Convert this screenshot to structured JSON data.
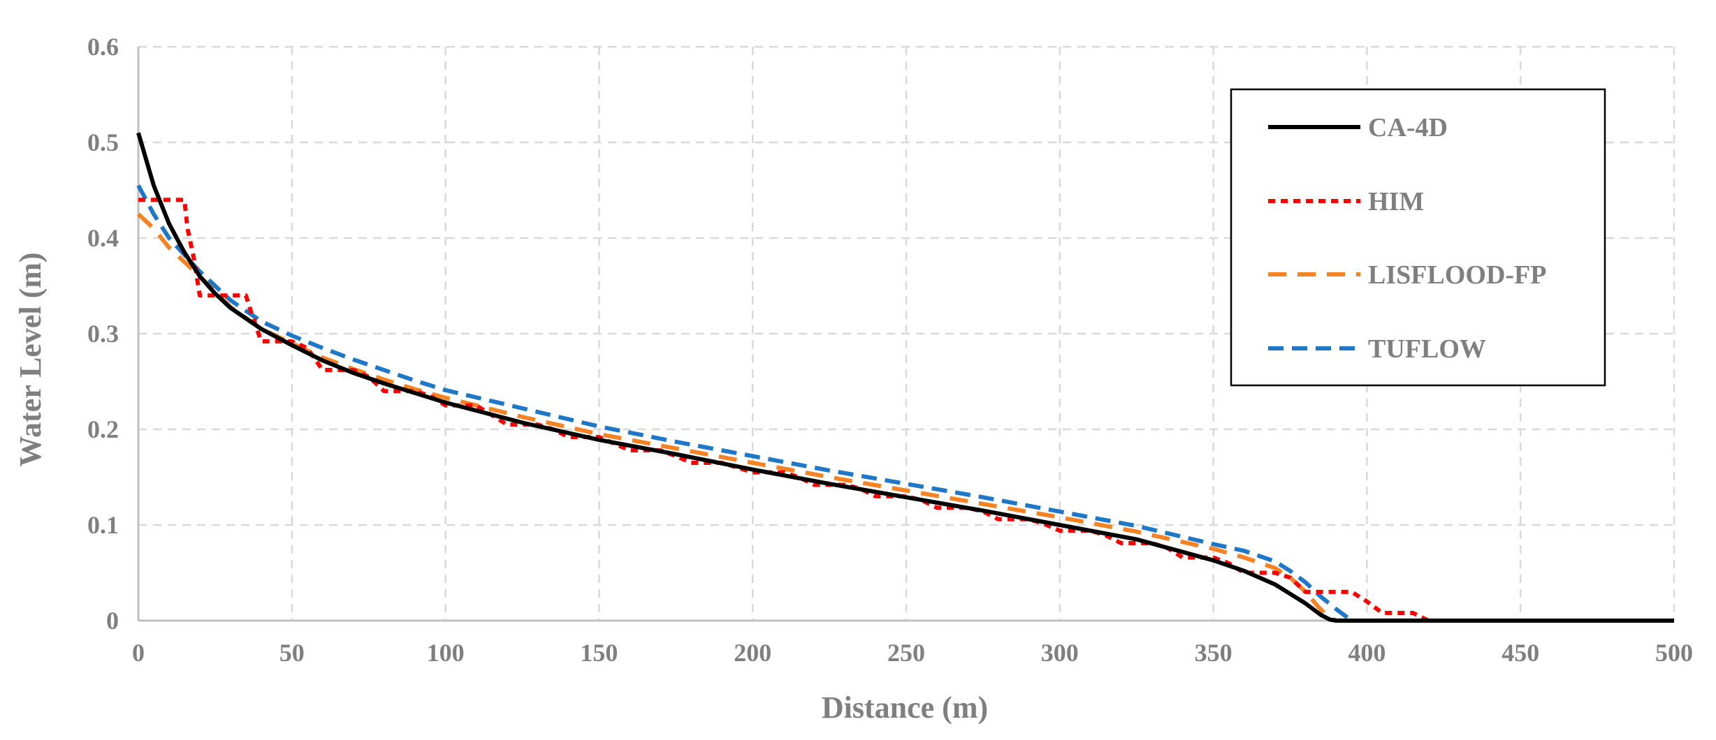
{
  "chart_data": {
    "type": "line",
    "title": "",
    "xlabel": "Distance (m)",
    "ylabel": "Water Level (m)",
    "xlim": [
      0,
      500
    ],
    "ylim": [
      0,
      0.6
    ],
    "x_ticks": [
      0,
      50,
      100,
      150,
      200,
      250,
      300,
      350,
      400,
      450,
      500
    ],
    "y_ticks": [
      0,
      0.1,
      0.2,
      0.3,
      0.4,
      0.5,
      0.6
    ],
    "x_tick_labels": [
      "0",
      "50",
      "100",
      "150",
      "200",
      "250",
      "300",
      "350",
      "400",
      "450",
      "500"
    ],
    "y_tick_labels": [
      "0",
      "0.1",
      "0.2",
      "0.3",
      "0.4",
      "0.5",
      "0.6"
    ],
    "grid": true,
    "legend_position": "top-right",
    "series": [
      {
        "name": "CA-4D",
        "color": "#000000",
        "dash": "solid",
        "x": [
          0,
          5,
          10,
          15,
          20,
          25,
          30,
          40,
          50,
          60,
          70,
          80,
          90,
          100,
          125,
          150,
          175,
          200,
          225,
          250,
          275,
          300,
          325,
          350,
          360,
          370,
          375,
          380,
          385,
          388,
          390,
          400,
          500
        ],
        "y": [
          0.51,
          0.455,
          0.415,
          0.385,
          0.36,
          0.342,
          0.327,
          0.305,
          0.288,
          0.272,
          0.259,
          0.248,
          0.238,
          0.228,
          0.207,
          0.189,
          0.174,
          0.158,
          0.143,
          0.129,
          0.115,
          0.1,
          0.085,
          0.063,
          0.052,
          0.038,
          0.028,
          0.018,
          0.006,
          0.001,
          0,
          0,
          0
        ]
      },
      {
        "name": "HIM",
        "color": "#ff0000",
        "dash": "dotted",
        "x": [
          0,
          15,
          16,
          18,
          20,
          35,
          37,
          40,
          50,
          55,
          60,
          70,
          75,
          80,
          90,
          95,
          100,
          110,
          115,
          120,
          130,
          135,
          140,
          150,
          155,
          160,
          170,
          175,
          180,
          190,
          195,
          200,
          210,
          215,
          220,
          230,
          235,
          240,
          250,
          255,
          260,
          270,
          275,
          280,
          290,
          295,
          300,
          310,
          315,
          320,
          330,
          335,
          340,
          350,
          355,
          360,
          370,
          375,
          380,
          385,
          390,
          395,
          400,
          405,
          415,
          420,
          500
        ],
        "y": [
          0.44,
          0.44,
          0.41,
          0.38,
          0.34,
          0.34,
          0.32,
          0.292,
          0.292,
          0.285,
          0.262,
          0.262,
          0.255,
          0.24,
          0.24,
          0.235,
          0.225,
          0.225,
          0.215,
          0.205,
          0.205,
          0.2,
          0.192,
          0.192,
          0.185,
          0.178,
          0.178,
          0.172,
          0.165,
          0.165,
          0.16,
          0.155,
          0.155,
          0.15,
          0.142,
          0.142,
          0.138,
          0.13,
          0.13,
          0.126,
          0.118,
          0.118,
          0.114,
          0.106,
          0.106,
          0.101,
          0.094,
          0.094,
          0.089,
          0.081,
          0.081,
          0.076,
          0.066,
          0.066,
          0.06,
          0.05,
          0.05,
          0.045,
          0.03,
          0.03,
          0.03,
          0.03,
          0.02,
          0.008,
          0.008,
          0,
          0
        ]
      },
      {
        "name": "LISFLOOD-FP",
        "color": "#f58223",
        "dash": "dashed",
        "x": [
          0,
          5,
          10,
          20,
          30,
          40,
          50,
          60,
          70,
          80,
          90,
          100,
          125,
          150,
          175,
          200,
          225,
          250,
          275,
          300,
          325,
          350,
          360,
          370,
          375,
          380,
          384,
          387,
          390,
          500
        ],
        "y": [
          0.425,
          0.41,
          0.39,
          0.36,
          0.328,
          0.305,
          0.29,
          0.275,
          0.263,
          0.252,
          0.242,
          0.233,
          0.213,
          0.195,
          0.18,
          0.165,
          0.15,
          0.136,
          0.122,
          0.108,
          0.093,
          0.075,
          0.066,
          0.055,
          0.045,
          0.03,
          0.015,
          0.005,
          0,
          0
        ]
      },
      {
        "name": "TUFLOW",
        "color": "#1f77c8",
        "dash": "dashed",
        "x": [
          0,
          5,
          10,
          20,
          30,
          40,
          50,
          60,
          70,
          80,
          90,
          100,
          125,
          150,
          175,
          200,
          225,
          250,
          275,
          300,
          325,
          350,
          360,
          370,
          375,
          380,
          385,
          390,
          395,
          500
        ],
        "y": [
          0.455,
          0.425,
          0.4,
          0.365,
          0.335,
          0.313,
          0.298,
          0.285,
          0.273,
          0.262,
          0.251,
          0.241,
          0.222,
          0.203,
          0.187,
          0.172,
          0.157,
          0.143,
          0.129,
          0.114,
          0.099,
          0.08,
          0.073,
          0.062,
          0.052,
          0.04,
          0.025,
          0.012,
          0,
          0
        ]
      }
    ]
  }
}
